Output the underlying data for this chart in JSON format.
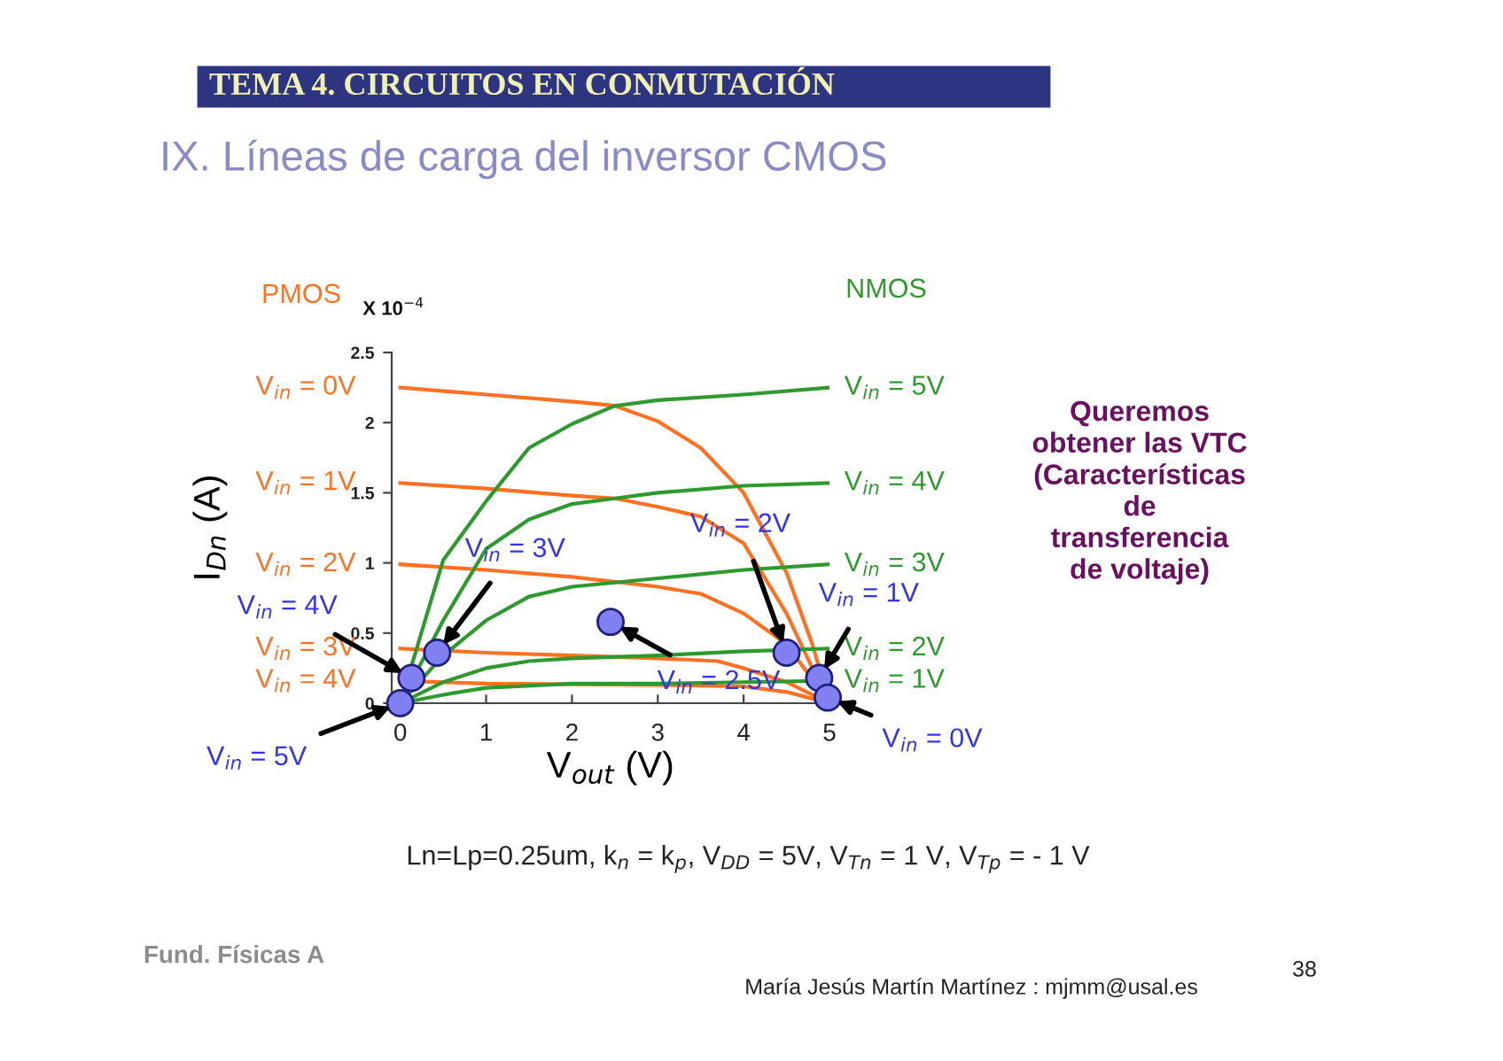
{
  "chart_data": {
    "type": "line",
    "title": "IX. Líneas de carga del inversor CMOS",
    "xlabel": "V$_{out}$ (V)",
    "ylabel": "I$_{Dn}$ (A)",
    "xlim": [
      -0.1,
      5
    ],
    "ylim": [
      0,
      2.5
    ],
    "xticks": [
      0,
      1,
      2,
      3,
      4,
      5
    ],
    "yticks": [
      0,
      0.5,
      1,
      1.5,
      2,
      2.5
    ],
    "grid": false,
    "legend": false,
    "marker": "none",
    "line_style": "solid",
    "series": [
      {
        "name": "V$_{in}$ = 0V",
        "color": "#ff7020",
        "x": [
          0,
          1,
          2,
          2.5,
          3,
          3.5,
          4,
          4.5,
          4.8,
          5
        ],
        "values": [
          2.25,
          2.2,
          2.15,
          2.12,
          2.01,
          1.82,
          1.5,
          0.93,
          0.42,
          0
        ]
      },
      {
        "name": "V$_{in}$ = 1V",
        "color": "#ff7020",
        "x": [
          0,
          1,
          2,
          2.5,
          3,
          3.5,
          4,
          4.5,
          4.8,
          5
        ],
        "values": [
          1.57,
          1.53,
          1.48,
          1.46,
          1.4,
          1.33,
          1.14,
          0.64,
          0.25,
          0
        ]
      },
      {
        "name": "V$_{in}$ = 2V",
        "color": "#ff7020",
        "x": [
          0,
          1,
          2,
          3,
          3.5,
          4,
          4.5,
          4.8,
          5
        ],
        "values": [
          0.99,
          0.95,
          0.9,
          0.83,
          0.78,
          0.64,
          0.42,
          0.17,
          0
        ]
      },
      {
        "name": "V$_{in}$ = 3V",
        "color": "#ff7020",
        "x": [
          0,
          1,
          2,
          3,
          3.7,
          4,
          4.5,
          5
        ],
        "values": [
          0.39,
          0.36,
          0.34,
          0.32,
          0.3,
          0.25,
          0.15,
          0
        ]
      },
      {
        "name": "V$_{in}$ = 4V",
        "color": "#ff7020",
        "x": [
          0,
          1,
          3,
          4,
          4.5,
          5
        ],
        "values": [
          0.16,
          0.14,
          0.13,
          0.12,
          0.08,
          0
        ]
      },
      {
        "name": "V$_{in}$ = 5V",
        "color": "#2e9a2e",
        "x": [
          0,
          0.5,
          1,
          1.5,
          2,
          2.5,
          3,
          4,
          5
        ],
        "values": [
          0,
          1.02,
          1.44,
          1.82,
          1.99,
          2.12,
          2.16,
          2.2,
          2.25
        ]
      },
      {
        "name": "V$_{in}$ = 4V",
        "color": "#2e9a2e",
        "x": [
          0,
          0.5,
          1,
          1.5,
          2,
          2.5,
          3,
          4,
          5
        ],
        "values": [
          0,
          0.59,
          1.1,
          1.31,
          1.42,
          1.46,
          1.5,
          1.55,
          1.57
        ]
      },
      {
        "name": "V$_{in}$ = 3V",
        "color": "#2e9a2e",
        "x": [
          0,
          0.5,
          1,
          1.5,
          2,
          3,
          4,
          5
        ],
        "values": [
          0,
          0.34,
          0.59,
          0.76,
          0.83,
          0.89,
          0.95,
          0.99
        ]
      },
      {
        "name": "V$_{in}$ = 2V",
        "color": "#2e9a2e",
        "x": [
          0,
          0.5,
          1,
          1.5,
          2,
          3,
          4,
          5
        ],
        "values": [
          0,
          0.15,
          0.25,
          0.3,
          0.32,
          0.34,
          0.37,
          0.39
        ]
      },
      {
        "name": "V$_{in}$ = 1V",
        "color": "#2e9a2e",
        "x": [
          0,
          0.5,
          1,
          2,
          3,
          4,
          5
        ],
        "values": [
          0,
          0.06,
          0.11,
          0.14,
          0.14,
          0.15,
          0.16
        ]
      },
      {
        "type": "scatter",
        "color": "#8080f0",
        "marker": "circle",
        "x": [
          0,
          0.13,
          0.43,
          2.45,
          4.5,
          4.88,
          4.98
        ],
        "values": [
          0,
          0.18,
          0.36,
          0.58,
          0.36,
          0.18,
          0.04
        ]
      }
    ],
    "annotations": [
      "TEMA 4. CIRCUITOS EN CONMUTACIÓN",
      "PMOS",
      "NMOS",
      "X 10$^{−4}$",
      "Queremos\nobtener las VTC\n(Características\nde\ntransferencia\nde voltaje)",
      "Ln=Lp=0.25um, k$_{n}$ = k$_{p}$, V$_{DD}$ = 5V, V$_{Tn}$ = 1 V, V$_{Tp}$ = - 1 V",
      "Fund. Físicas A",
      "María Jesús Martín Martínez : mjmm@usal.es",
      "38",
      {
        "text": "V$_{in}$ = 5V",
        "x": 0,
        "y": 0
      },
      {
        "text": "V$_{in}$ = 4V",
        "x": 0.13,
        "y": 0.18
      },
      {
        "text": "V$_{in}$ = 3V",
        "x": 0.43,
        "y": 0.36
      },
      {
        "text": "V$_{in}$ = 2.5V",
        "x": 2.45,
        "y": 0.58
      },
      {
        "text": "V$_{in}$ = 2V",
        "x": 4.5,
        "y": 0.36
      },
      {
        "text": "V$_{in}$ = 1V",
        "x": 4.88,
        "y": 0.18
      },
      {
        "text": "V$_{in}$ = 0V",
        "x": 4.98,
        "y": 0.04
      }
    ]
  }
}
